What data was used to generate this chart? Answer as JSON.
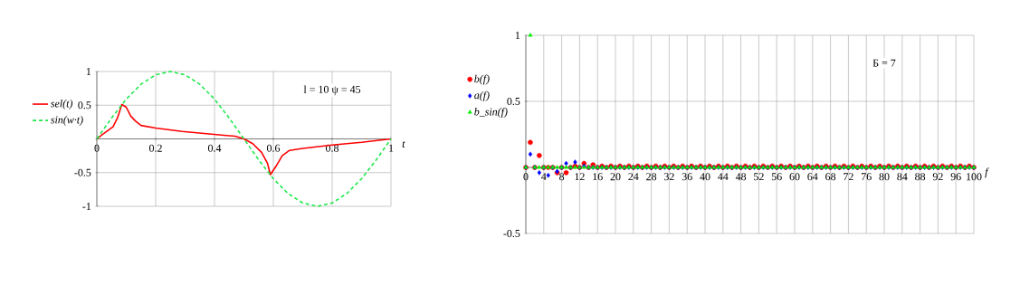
{
  "chart_data": [
    {
      "type": "line",
      "xlabel": "t",
      "xlim": [
        0,
        1
      ],
      "ylim": [
        -1,
        1
      ],
      "xticks": [
        0,
        0.2,
        0.4,
        0.6,
        0.8,
        1
      ],
      "yticks": [
        -1,
        -0.5,
        {
          "value": 0,
          "label": null
        },
        0.5,
        1
      ],
      "grid": true,
      "legend": "left",
      "annotations": [
        "l = 10   ψ = 45"
      ],
      "series": [
        {
          "name": "sel(t)",
          "color": "#ff0000",
          "line_style": "solid",
          "x": [
            0,
            0.02,
            0.055,
            0.07,
            0.085,
            0.1,
            0.115,
            0.13,
            0.15,
            0.2,
            0.29,
            0.39,
            0.47,
            0.5,
            0.53,
            0.56,
            0.58,
            0.59,
            0.61,
            0.63,
            0.655,
            0.7,
            0.8,
            0.9,
            1
          ],
          "values": [
            0,
            0.07,
            0.18,
            0.31,
            0.51,
            0.47,
            0.34,
            0.27,
            0.2,
            0.16,
            0.11,
            0.07,
            0.04,
            0,
            -0.07,
            -0.2,
            -0.36,
            -0.53,
            -0.4,
            -0.25,
            -0.17,
            -0.14,
            -0.09,
            -0.05,
            0
          ]
        },
        {
          "name": "sin(w·t)",
          "color": "#1ee84a",
          "line_style": "dashed",
          "x": [
            0,
            0.05,
            0.1,
            0.15,
            0.2,
            0.25,
            0.3,
            0.35,
            0.4,
            0.45,
            0.5,
            0.55,
            0.6,
            0.65,
            0.7,
            0.75,
            0.8,
            0.85,
            0.9,
            0.95,
            1
          ],
          "values": [
            0,
            0.31,
            0.59,
            0.81,
            0.95,
            1,
            0.95,
            0.81,
            0.59,
            0.31,
            0,
            -0.31,
            -0.59,
            -0.81,
            -0.95,
            -1,
            -0.95,
            -0.81,
            -0.59,
            -0.31,
            0
          ]
        }
      ]
    },
    {
      "type": "scatter",
      "xlabel": "f",
      "xlim": [
        0,
        100
      ],
      "ylim": [
        -0.5,
        1
      ],
      "xticks": [
        0,
        4,
        8,
        12,
        16,
        20,
        24,
        28,
        32,
        36,
        40,
        44,
        48,
        52,
        56,
        60,
        64,
        68,
        72,
        76,
        80,
        84,
        88,
        92,
        96,
        100
      ],
      "yticks": [
        -0.5,
        {
          "value": 0,
          "label": null
        },
        0.5,
        1
      ],
      "grid": true,
      "legend": "left",
      "annotations": [
        "Б = 7"
      ],
      "x": [
        0,
        1,
        2,
        3,
        4,
        5,
        6,
        7,
        8,
        9,
        10,
        11,
        12,
        13,
        14,
        15,
        16,
        17,
        18,
        19,
        20,
        21,
        22,
        23,
        24,
        25,
        26,
        27,
        28,
        29,
        30,
        31,
        32,
        33,
        34,
        35,
        36,
        37,
        38,
        39,
        40,
        41,
        42,
        43,
        44,
        45,
        46,
        47,
        48,
        49,
        50,
        51,
        52,
        53,
        54,
        55,
        56,
        57,
        58,
        59,
        60,
        61,
        62,
        63,
        64,
        65,
        66,
        67,
        68,
        69,
        70,
        71,
        72,
        73,
        74,
        75,
        76,
        77,
        78,
        79,
        80,
        81,
        82,
        83,
        84,
        85,
        86,
        87,
        88,
        89,
        90,
        91,
        92,
        93,
        94,
        95,
        96,
        97,
        98,
        99,
        100
      ],
      "series": [
        {
          "name": "b(f)",
          "color": "#ff0000",
          "marker": "circle",
          "values": [
            0,
            0.19,
            0,
            0.09,
            0,
            0,
            0,
            -0.04,
            0,
            -0.04,
            0,
            0.01,
            0,
            0.03,
            0,
            0.02,
            0,
            0.01,
            0,
            0.01,
            0,
            0.01,
            0,
            0.01,
            0,
            0.01,
            0,
            0.01,
            0,
            0.01,
            0,
            0.01,
            0,
            0.01,
            0,
            0.01,
            0,
            0.01,
            0,
            0.01,
            0,
            0.01,
            0,
            0.01,
            0,
            0.01,
            0,
            0.01,
            0,
            0.01,
            0,
            0.01,
            0,
            0.01,
            0,
            0.01,
            0,
            0.01,
            0,
            0.01,
            0,
            0.01,
            0,
            0.01,
            0,
            0.01,
            0,
            0.01,
            0,
            0.01,
            0,
            0.01,
            0,
            0.01,
            0,
            0.01,
            0,
            0.01,
            0,
            0.01,
            0,
            0.01,
            0,
            0.01,
            0,
            0.01,
            0,
            0.01,
            0,
            0.01,
            0,
            0.01,
            0,
            0.01,
            0,
            0.01,
            0,
            0.01,
            0,
            0.01,
            0
          ]
        },
        {
          "name": "a(f)",
          "color": "#0000ff",
          "marker": "diamond",
          "values": [
            0,
            0.1,
            0,
            -0.04,
            0,
            -0.06,
            0,
            -0.03,
            0,
            0.03,
            0,
            0.04,
            0,
            0.01,
            0,
            0,
            0,
            0,
            0,
            0,
            0,
            0,
            0,
            0,
            0,
            0,
            0,
            0,
            0,
            0,
            0,
            0,
            0,
            0,
            0,
            0,
            0,
            0,
            0,
            0,
            0,
            0,
            0,
            0,
            0,
            0,
            0,
            0,
            0,
            0,
            0,
            0,
            0,
            0,
            0,
            0,
            0,
            0,
            0,
            0,
            0,
            0,
            0,
            0,
            0,
            0,
            0,
            0,
            0,
            0,
            0,
            0,
            0,
            0,
            0,
            0,
            0,
            0,
            0,
            0,
            0,
            0,
            0,
            0,
            0,
            0,
            0,
            0,
            0,
            0,
            0,
            0,
            0,
            0,
            0,
            0,
            0,
            0,
            0,
            0,
            0
          ]
        },
        {
          "name": "b_sin(f)",
          "color": "#00ee00",
          "marker": "triangle",
          "values": [
            0,
            1,
            0,
            0,
            0,
            0,
            0,
            0,
            0,
            0,
            0,
            0,
            0,
            0,
            0,
            0,
            0,
            0,
            0,
            0,
            0,
            0,
            0,
            0,
            0,
            0,
            0,
            0,
            0,
            0,
            0,
            0,
            0,
            0,
            0,
            0,
            0,
            0,
            0,
            0,
            0,
            0,
            0,
            0,
            0,
            0,
            0,
            0,
            0,
            0,
            0,
            0,
            0,
            0,
            0,
            0,
            0,
            0,
            0,
            0,
            0,
            0,
            0,
            0,
            0,
            0,
            0,
            0,
            0,
            0,
            0,
            0,
            0,
            0,
            0,
            0,
            0,
            0,
            0,
            0,
            0,
            0,
            0,
            0,
            0,
            0,
            0,
            0,
            0,
            0,
            0,
            0,
            0,
            0,
            0,
            0,
            0,
            0,
            0,
            0,
            0
          ]
        }
      ]
    }
  ]
}
